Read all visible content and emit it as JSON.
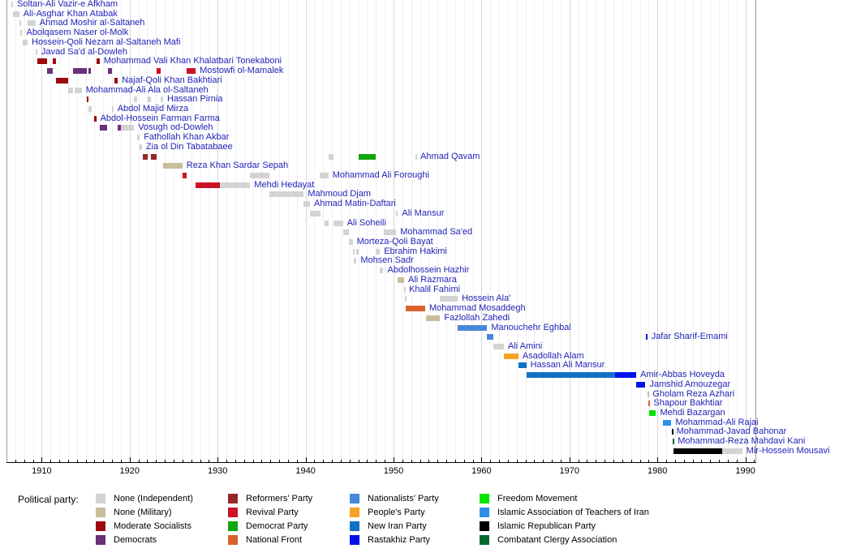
{
  "legend": {
    "title": "Political party:",
    "columns": [
      [
        {
          "party": "ind",
          "label": "None (Independent)"
        },
        {
          "party": "mil",
          "label": "None (Military)"
        },
        {
          "party": "ms",
          "label": "Moderate Socialists"
        },
        {
          "party": "dem",
          "label": "Democrats"
        }
      ],
      [
        {
          "party": "ref",
          "label": "Reformers' Party"
        },
        {
          "party": "rev",
          "label": "Revival Party"
        },
        {
          "party": "dp",
          "label": "Democrat Party"
        },
        {
          "party": "nf",
          "label": "National Front"
        }
      ],
      [
        {
          "party": "nat",
          "label": "Nationalists' Party"
        },
        {
          "party": "pp",
          "label": "People's Party"
        },
        {
          "party": "nip",
          "label": "New Iran Party"
        },
        {
          "party": "ras",
          "label": "Rastakhiz Party"
        }
      ],
      [
        {
          "party": "fm",
          "label": "Freedom Movement"
        },
        {
          "party": "iat",
          "label": "Islamic Association of Teachers of Iran"
        },
        {
          "party": "irp",
          "label": "Islamic Republican Party"
        },
        {
          "party": "cca",
          "label": "Combatant Clergy Association"
        }
      ]
    ]
  },
  "party_colors": {
    "ind": "#D3D3D3",
    "mil": "#C9BE9C",
    "ms": "#9E0B0F",
    "dem": "#6A3079",
    "ref": "#94282B",
    "rev": "#CE1126",
    "dp": "#0FA60F",
    "nf": "#D9622B",
    "nat": "#4788D8",
    "pp": "#F9A227",
    "nip": "#1072C4",
    "ras": "#0011EE",
    "fm": "#00E400",
    "iat": "#2E8FE8",
    "irp": "#000000",
    "cca": "#006B2D"
  },
  "chart_data": {
    "type": "timeline",
    "title": "",
    "x_axis": {
      "start": 1906,
      "end": 1991.5,
      "tick_interval": 1,
      "label_interval": 10,
      "labels": [
        "1910",
        "1920",
        "1930",
        "1940",
        "1950",
        "1960",
        "1970",
        "1980",
        "1990"
      ],
      "label_years": [
        1910,
        1920,
        1930,
        1940,
        1950,
        1960,
        1970,
        1980,
        1990
      ]
    },
    "grid": true,
    "legend_position": "bottom",
    "rows": [
      {
        "name": "Soltan-Ali Vazir-e Afkham",
        "segments": [
          {
            "start": 1906.55,
            "end": 1906.75,
            "party": "ind"
          }
        ]
      },
      {
        "name": "Ali-Asghar Khan Atabak",
        "segments": [
          {
            "start": 1906.75,
            "end": 1907.45,
            "party": "ind"
          }
        ]
      },
      {
        "name": "Ahmad Moshir al-Saltaneh",
        "segments": [
          {
            "start": 1907.45,
            "end": 1907.6,
            "party": "ind"
          },
          {
            "start": 1908.4,
            "end": 1909.3,
            "party": "ind"
          }
        ]
      },
      {
        "name": "Abolqasem Naser ol-Molk",
        "segments": [
          {
            "start": 1907.6,
            "end": 1907.8,
            "party": "ind"
          }
        ]
      },
      {
        "name": "Hossein-Qoli Nezam al-Saltaneh Mafi",
        "segments": [
          {
            "start": 1907.8,
            "end": 1908.4,
            "party": "ind"
          }
        ]
      },
      {
        "name": "Javad Sa'd al-Dowleh",
        "segments": [
          {
            "start": 1909.3,
            "end": 1909.5,
            "party": "ind"
          }
        ]
      },
      {
        "name": "Mohammad Vali Khan Khalatbari Tonekaboni",
        "segments": [
          {
            "start": 1909.5,
            "end": 1910.6,
            "party": "ms"
          },
          {
            "start": 1911.25,
            "end": 1911.6,
            "party": "ms"
          },
          {
            "start": 1916.2,
            "end": 1916.6,
            "party": "ms"
          }
        ]
      },
      {
        "name": "Mostowfi ol-Mamalek",
        "segments": [
          {
            "start": 1910.6,
            "end": 1911.25,
            "party": "dem"
          },
          {
            "start": 1913.6,
            "end": 1915.15,
            "party": "dem"
          },
          {
            "start": 1915.35,
            "end": 1915.55,
            "party": "dem"
          },
          {
            "start": 1917.5,
            "end": 1917.95,
            "party": "dem"
          },
          {
            "start": 1923.1,
            "end": 1923.5,
            "party": "rev"
          },
          {
            "start": 1926.5,
            "end": 1927.5,
            "party": "rev"
          }
        ]
      },
      {
        "name": "Najaf-Qoli Khan Bakhtiari",
        "segments": [
          {
            "start": 1911.6,
            "end": 1913.05,
            "party": "ms"
          },
          {
            "start": 1918.3,
            "end": 1918.65,
            "party": "ms"
          }
        ]
      },
      {
        "name": "Mohammad-Ali Ala ol-Saltaneh",
        "segments": [
          {
            "start": 1913.05,
            "end": 1913.55,
            "party": "ind"
          },
          {
            "start": 1913.7,
            "end": 1914.55,
            "party": "ind"
          }
        ]
      },
      {
        "name": "Hassan Pirnia",
        "segments": [
          {
            "start": 1915.1,
            "end": 1915.35,
            "party": "ms"
          },
          {
            "start": 1920.5,
            "end": 1920.85,
            "party": "ind"
          },
          {
            "start": 1922.05,
            "end": 1922.45,
            "party": "ind"
          },
          {
            "start": 1923.5,
            "end": 1923.8,
            "party": "ind"
          }
        ]
      },
      {
        "name": "Abdol Majid Mirza",
        "segments": [
          {
            "start": 1915.35,
            "end": 1915.65,
            "party": "ind"
          },
          {
            "start": 1917.95,
            "end": 1918.15,
            "party": "ind"
          }
        ]
      },
      {
        "name": "Abdol-Hossein Farman Farma",
        "segments": [
          {
            "start": 1915.95,
            "end": 1916.2,
            "party": "ms"
          }
        ]
      },
      {
        "name": "Vosugh od-Dowleh",
        "segments": [
          {
            "start": 1916.6,
            "end": 1917.4,
            "party": "dem"
          },
          {
            "start": 1918.6,
            "end": 1919.0,
            "party": "dem"
          },
          {
            "start": 1919.0,
            "end": 1920.5,
            "party": "ind"
          }
        ]
      },
      {
        "name": "Fathollah Khan Akbar",
        "segments": [
          {
            "start": 1920.85,
            "end": 1921.15,
            "party": "ind"
          }
        ]
      },
      {
        "name": "Zia ol Din Tabatabaee",
        "segments": [
          {
            "start": 1921.15,
            "end": 1921.4,
            "party": "ind"
          }
        ]
      },
      {
        "name": "Ahmad Qavam",
        "segments": [
          {
            "start": 1921.45,
            "end": 1922.05,
            "party": "ref"
          },
          {
            "start": 1922.45,
            "end": 1923.1,
            "party": "ref"
          },
          {
            "start": 1942.6,
            "end": 1943.15,
            "party": "ind"
          },
          {
            "start": 1946.05,
            "end": 1947.95,
            "party": "dp"
          },
          {
            "start": 1952.5,
            "end": 1952.6,
            "party": "ind"
          }
        ]
      },
      {
        "name": "Reza Khan Sardar Sepah",
        "segments": [
          {
            "start": 1923.8,
            "end": 1926.0,
            "party": "mil"
          }
        ]
      },
      {
        "name": "Mohammad Ali Foroughi",
        "segments": [
          {
            "start": 1926.0,
            "end": 1926.45,
            "party": "rev"
          },
          {
            "start": 1933.7,
            "end": 1935.9,
            "party": "ind"
          },
          {
            "start": 1941.65,
            "end": 1942.6,
            "party": "ind"
          }
        ]
      },
      {
        "name": "Mehdi Hedayat",
        "segments": [
          {
            "start": 1927.45,
            "end": 1930.3,
            "party": "rev"
          },
          {
            "start": 1930.3,
            "end": 1933.7,
            "party": "ind"
          }
        ]
      },
      {
        "name": "Mahmoud Djam",
        "segments": [
          {
            "start": 1935.9,
            "end": 1939.8,
            "party": "ind"
          }
        ]
      },
      {
        "name": "Ahmad Matin-Daftari",
        "segments": [
          {
            "start": 1939.8,
            "end": 1940.5,
            "party": "ind"
          }
        ]
      },
      {
        "name": "Ali Mansur",
        "segments": [
          {
            "start": 1940.5,
            "end": 1941.65,
            "party": "ind"
          },
          {
            "start": 1950.3,
            "end": 1950.5,
            "party": "ind"
          }
        ]
      },
      {
        "name": "Ali Soheili",
        "segments": [
          {
            "start": 1942.2,
            "end": 1942.6,
            "party": "ind"
          },
          {
            "start": 1943.15,
            "end": 1944.25,
            "party": "ind"
          }
        ]
      },
      {
        "name": "Mohammad Sa'ed",
        "segments": [
          {
            "start": 1944.25,
            "end": 1944.9,
            "party": "ind"
          },
          {
            "start": 1948.9,
            "end": 1950.3,
            "party": "ind"
          }
        ]
      },
      {
        "name": "Morteza-Qoli Bayat",
        "segments": [
          {
            "start": 1944.9,
            "end": 1945.35,
            "party": "ind"
          }
        ]
      },
      {
        "name": "Ebrahim Hakimi",
        "segments": [
          {
            "start": 1945.35,
            "end": 1945.45,
            "party": "ind"
          },
          {
            "start": 1945.8,
            "end": 1946.05,
            "party": "ind"
          },
          {
            "start": 1947.95,
            "end": 1948.45,
            "party": "ind"
          }
        ]
      },
      {
        "name": "Mohsen Sadr",
        "segments": [
          {
            "start": 1945.45,
            "end": 1945.8,
            "party": "ind"
          }
        ]
      },
      {
        "name": "Abdolhossein Hazhir",
        "segments": [
          {
            "start": 1948.45,
            "end": 1948.85,
            "party": "ind"
          }
        ]
      },
      {
        "name": "Ali Razmara",
        "segments": [
          {
            "start": 1950.5,
            "end": 1951.2,
            "party": "mil"
          }
        ]
      },
      {
        "name": "Khalil Fahimi",
        "segments": [
          {
            "start": 1951.2,
            "end": 1951.3,
            "party": "ind"
          }
        ]
      },
      {
        "name": "Hossein Ala'",
        "segments": [
          {
            "start": 1951.3,
            "end": 1951.4,
            "party": "ind"
          },
          {
            "start": 1955.3,
            "end": 1957.3,
            "party": "ind"
          }
        ]
      },
      {
        "name": "Mohammad Mosaddegh",
        "segments": [
          {
            "start": 1951.4,
            "end": 1953.6,
            "party": "nf"
          }
        ]
      },
      {
        "name": "Fazlollah Zahedi",
        "segments": [
          {
            "start": 1953.65,
            "end": 1955.3,
            "party": "mil"
          }
        ]
      },
      {
        "name": "Manouchehr Eghbal",
        "segments": [
          {
            "start": 1957.3,
            "end": 1960.65,
            "party": "nat"
          }
        ]
      },
      {
        "name": "Jafar Sharif-Emami",
        "segments": [
          {
            "start": 1960.65,
            "end": 1961.35,
            "party": "nat"
          },
          {
            "start": 1978.65,
            "end": 1978.85,
            "party": "ras"
          }
        ]
      },
      {
        "name": "Ali Amini",
        "segments": [
          {
            "start": 1961.35,
            "end": 1962.55,
            "party": "ind"
          }
        ]
      },
      {
        "name": "Asadollah Alam",
        "segments": [
          {
            "start": 1962.55,
            "end": 1964.2,
            "party": "pp"
          }
        ]
      },
      {
        "name": "Hassan Ali Mansur",
        "segments": [
          {
            "start": 1964.2,
            "end": 1965.1,
            "party": "nip"
          }
        ]
      },
      {
        "name": "Amir-Abbas Hoveyda",
        "segments": [
          {
            "start": 1965.1,
            "end": 1975.2,
            "party": "nip"
          },
          {
            "start": 1975.2,
            "end": 1977.6,
            "party": "ras"
          }
        ]
      },
      {
        "name": "Jamshid Amouzegar",
        "segments": [
          {
            "start": 1977.6,
            "end": 1978.65,
            "party": "ras"
          }
        ]
      },
      {
        "name": "Gholam Reza Azhari",
        "segments": [
          {
            "start": 1978.85,
            "end": 1979.0,
            "party": "mil"
          }
        ]
      },
      {
        "name": "Shapour Bakhtiar",
        "segments": [
          {
            "start": 1979.0,
            "end": 1979.1,
            "party": "nf"
          }
        ]
      },
      {
        "name": "Mehdi Bazargan",
        "segments": [
          {
            "start": 1979.1,
            "end": 1979.85,
            "party": "fm"
          }
        ]
      },
      {
        "name": "Mohammad-Ali Rajai",
        "segments": [
          {
            "start": 1980.6,
            "end": 1981.6,
            "party": "iat"
          }
        ]
      },
      {
        "name": "Mohammad-Javad Bahonar",
        "segments": [
          {
            "start": 1981.6,
            "end": 1981.7,
            "party": "irp"
          }
        ]
      },
      {
        "name": "Mohammad-Reza Mahdavi Kani",
        "segments": [
          {
            "start": 1981.7,
            "end": 1981.85,
            "party": "cca"
          }
        ]
      },
      {
        "name": "Mir-Hossein Mousavi",
        "segments": [
          {
            "start": 1981.85,
            "end": 1987.4,
            "party": "irp"
          },
          {
            "start": 1987.4,
            "end": 1989.65,
            "party": "ind"
          }
        ]
      }
    ]
  }
}
